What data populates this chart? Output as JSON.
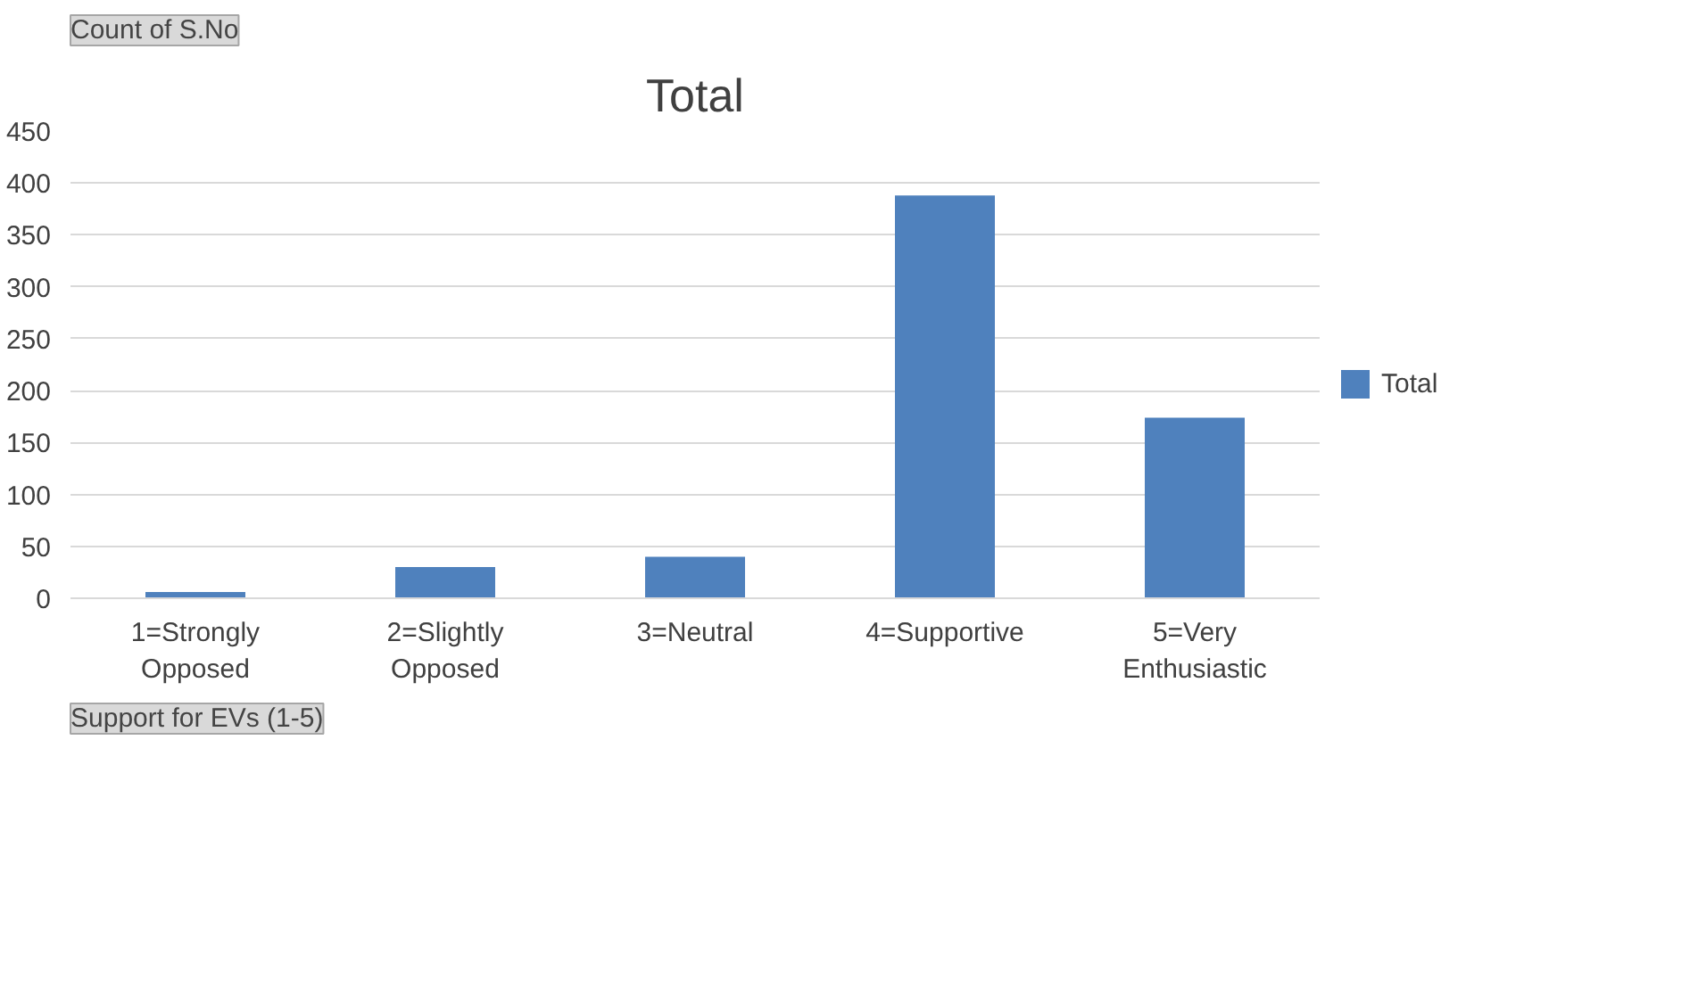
{
  "chart_data": {
    "type": "bar",
    "title": "Total",
    "categories": [
      "1=Strongly Opposed",
      "2=Slightly Opposed",
      "3=Neutral",
      "4=Supportive",
      "5=Very Enthusiastic"
    ],
    "series": [
      {
        "name": "Total",
        "color": "#4f81bd",
        "values": [
          6,
          30,
          40,
          388,
          174
        ]
      }
    ],
    "ylim": [
      0,
      450
    ],
    "yticks": [
      0,
      50,
      100,
      150,
      200,
      250,
      300,
      350,
      400,
      450
    ],
    "grid": "y",
    "legend": "right",
    "annotations": [
      "Count of S.No",
      "Support for EVs (1-5)"
    ]
  }
}
